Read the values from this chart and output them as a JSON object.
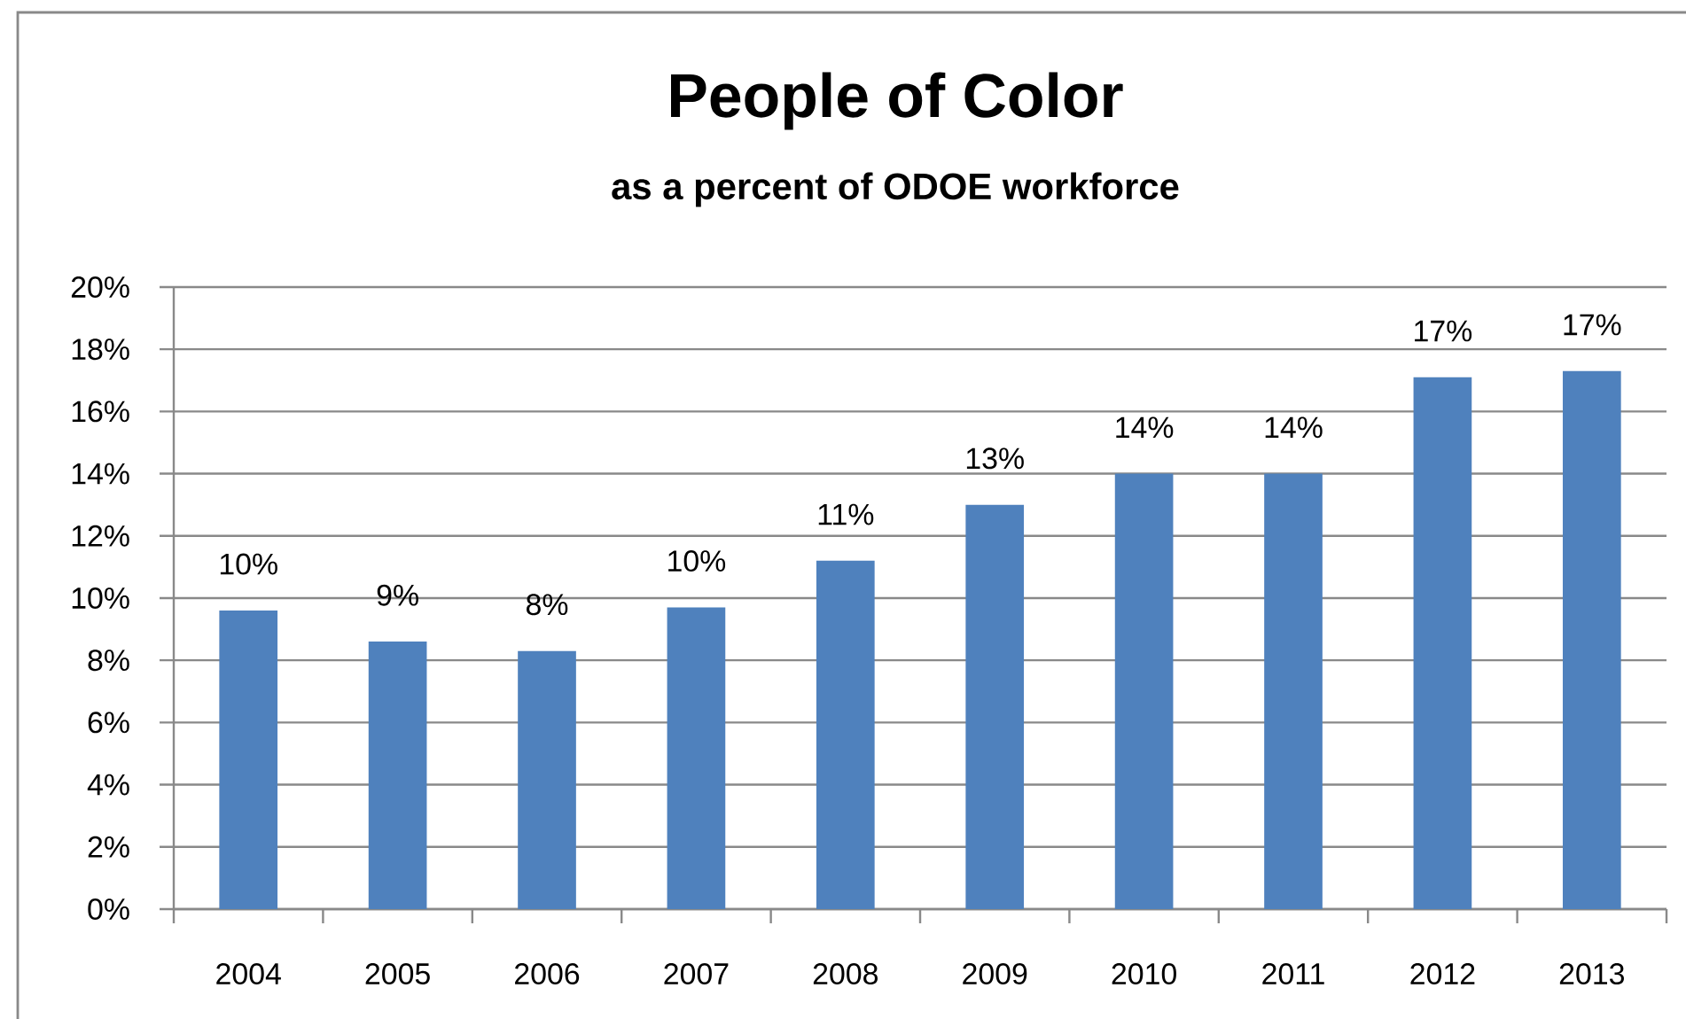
{
  "chart_data": {
    "type": "bar",
    "title": "People of Color",
    "subtitle": "as a percent of ODOE workforce",
    "categories": [
      "2004",
      "2005",
      "2006",
      "2007",
      "2008",
      "2009",
      "2010",
      "2011",
      "2012",
      "2013"
    ],
    "values": [
      9.6,
      8.6,
      8.3,
      9.7,
      11.2,
      13.0,
      14.0,
      14.0,
      17.1,
      17.3
    ],
    "value_labels": [
      "10%",
      "9%",
      "8%",
      "10%",
      "11%",
      "13%",
      "14%",
      "14%",
      "17%",
      "17%"
    ],
    "color": "#4f81bd",
    "ylim": [
      0,
      20
    ],
    "yticks": [
      {
        "value": 0,
        "label": "0%"
      },
      {
        "value": 2,
        "label": "2%"
      },
      {
        "value": 4,
        "label": "4%"
      },
      {
        "value": 6,
        "label": "6%"
      },
      {
        "value": 8,
        "label": "8%"
      },
      {
        "value": 10,
        "label": "10%"
      },
      {
        "value": 12,
        "label": "12%"
      },
      {
        "value": 14,
        "label": "14%"
      },
      {
        "value": 16,
        "label": "16%"
      },
      {
        "value": 18,
        "label": "18%"
      },
      {
        "value": 20,
        "label": "20%"
      }
    ],
    "grid": "y"
  }
}
